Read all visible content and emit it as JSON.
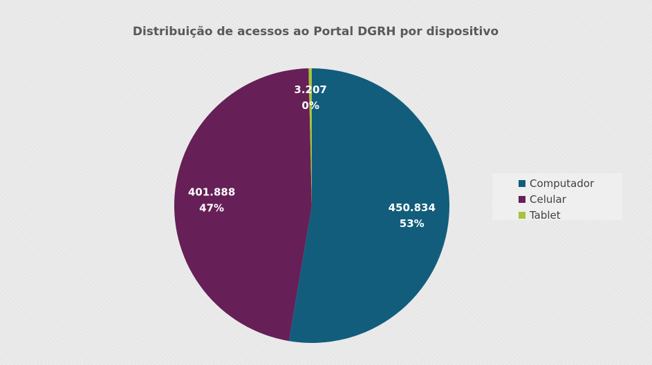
{
  "chart_data": {
    "type": "pie",
    "title": "Distribuição de acessos ao Portal DGRH por dispositivo",
    "slices": [
      {
        "name": "Computador",
        "value": 450834,
        "value_label": "450.834",
        "percent_label": "53%",
        "color": "#125d7c"
      },
      {
        "name": "Celular",
        "value": 401888,
        "value_label": "401.888",
        "percent_label": "47%",
        "color": "#661f57"
      },
      {
        "name": "Tablet",
        "value": 3207,
        "value_label": "3.207",
        "percent_label": "0%",
        "color": "#a7c43a"
      }
    ],
    "legend_position": "right"
  }
}
